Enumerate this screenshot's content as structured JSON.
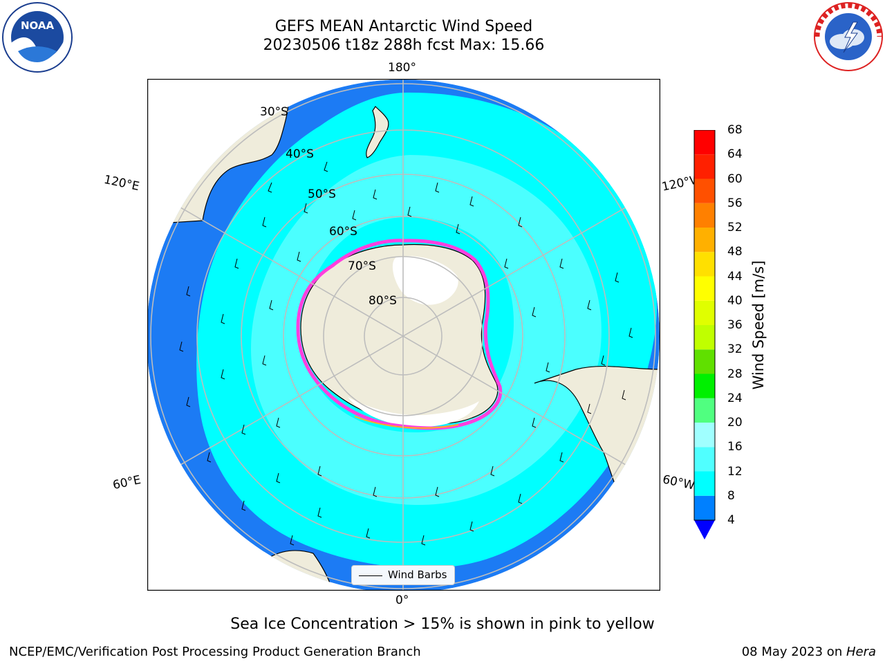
{
  "header": {
    "title_line1": "GEFS MEAN Antarctic Wind Speed",
    "title_line2": "20230506 t18z 288h fcst   Max: 15.66"
  },
  "logos": {
    "left": {
      "icon": "noaa-logo",
      "text": "NOAA",
      "ring_text": "NATIONAL OCEANIC AND ATMOSPHERIC ADMINISTRATION  U.S. DEPARTMENT OF COMMERCE"
    },
    "right": {
      "icon": "nws-logo",
      "ring_text": "NATIONAL WEATHER SERVICE"
    }
  },
  "map": {
    "projection": "south-polar-stereographic",
    "longitude_labels": [
      "180°",
      "120°E",
      "120°W",
      "60°E",
      "60°W",
      "0°"
    ],
    "latitude_labels": [
      "30°S",
      "40°S",
      "50°S",
      "60°S",
      "70°S",
      "80°S"
    ],
    "colors": {
      "ocean_low": "#1c7bf4",
      "ocean_mid": "#00ffff",
      "ocean_hi": "#4bffff",
      "land": "#efecdb",
      "ice_edge": "#ff3fdf",
      "ice_edge_2": "#ffb020",
      "gridline": "#bdbdbd"
    },
    "legend": {
      "label": "Wind Barbs",
      "icon": "wind-barb-line"
    }
  },
  "colorbar": {
    "label": "Wind Speed [m/s]",
    "ticks": [
      "68",
      "64",
      "60",
      "56",
      "52",
      "48",
      "44",
      "40",
      "36",
      "32",
      "28",
      "24",
      "20",
      "16",
      "12",
      "8",
      "4"
    ],
    "colors": [
      "#0000ff",
      "#0080ff",
      "#00ffff",
      "#50ffff",
      "#a0ffff",
      "#50ff80",
      "#00f000",
      "#60e000",
      "#c0ff00",
      "#e0ff00",
      "#ffff00",
      "#ffe000",
      "#ffb000",
      "#ff8000",
      "#ff5000",
      "#ff2000",
      "#ff0000"
    ]
  },
  "note": "Sea Ice Concentration > 15% is shown in pink to yellow",
  "footer": {
    "left": "NCEP/EMC/Verification Post Processing Product Generation Branch",
    "right_date": "08 May 2023 on ",
    "right_host": "Hera"
  }
}
